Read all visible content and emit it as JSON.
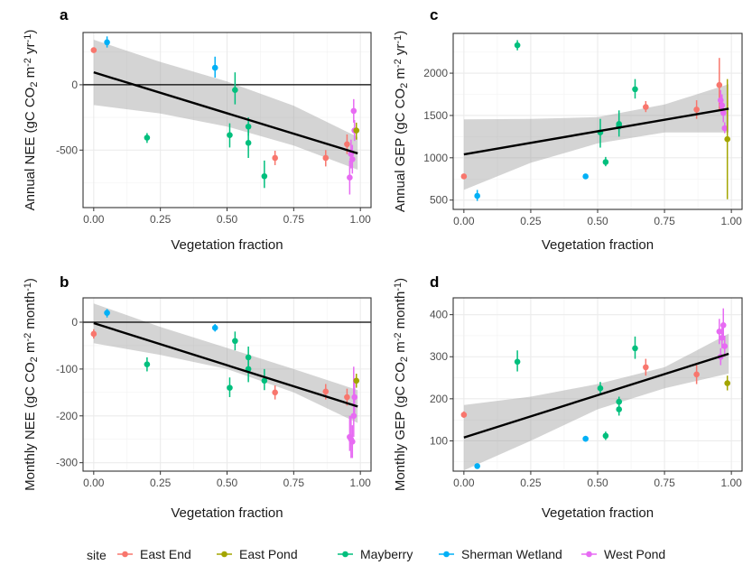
{
  "legend": {
    "title": "site",
    "items": [
      {
        "key": "east_end",
        "label": "East End",
        "color": "#F8766D"
      },
      {
        "key": "east_pond",
        "label": "East Pond",
        "color": "#A3A500"
      },
      {
        "key": "mayberry",
        "label": "Mayberry",
        "color": "#00BF7D"
      },
      {
        "key": "sherman",
        "label": "Sherman Wetland",
        "color": "#00B0F6"
      },
      {
        "key": "west_pond",
        "label": "West Pond",
        "color": "#E76BF3"
      }
    ]
  },
  "chart_data": [
    {
      "panel": "a",
      "type": "scatter",
      "xlabel": "Vegetation fraction",
      "ylabel_parts": [
        "Annual NEE (gC CO",
        "2",
        " m",
        "-2",
        " yr",
        "-1",
        ")"
      ],
      "xlim": [
        -0.04,
        1.04
      ],
      "ylim": [
        -940,
        400
      ],
      "xticks": [
        0,
        0.25,
        0.5,
        0.75,
        1
      ],
      "xtick_labels": [
        "0.00",
        "0.25",
        "0.50",
        "0.75",
        "1.00"
      ],
      "yticks": [
        -500,
        0
      ],
      "ytick_labels": [
        "-500",
        "0"
      ],
      "hline": 0,
      "fit": {
        "x0": 0,
        "y0": 95,
        "x1": 0.99,
        "y1": -525
      },
      "band": {
        "x": [
          0,
          0.25,
          0.5,
          0.75,
          0.99
        ],
        "lo": [
          -155,
          -220,
          -320,
          -465,
          -650
        ],
        "hi": [
          345,
          175,
          25,
          -160,
          -400
        ]
      },
      "points": [
        {
          "site": "east_end",
          "x": 0.0,
          "y": 265,
          "lo": 265,
          "hi": 265
        },
        {
          "site": "sherman",
          "x": 0.05,
          "y": 325,
          "lo": 285,
          "hi": 370
        },
        {
          "site": "mayberry",
          "x": 0.2,
          "y": -405,
          "lo": -445,
          "hi": -370
        },
        {
          "site": "sherman",
          "x": 0.455,
          "y": 130,
          "lo": 55,
          "hi": 215
        },
        {
          "site": "mayberry",
          "x": 0.51,
          "y": -385,
          "lo": -480,
          "hi": -295
        },
        {
          "site": "mayberry",
          "x": 0.53,
          "y": -40,
          "lo": -150,
          "hi": 95
        },
        {
          "site": "mayberry",
          "x": 0.58,
          "y": -320,
          "lo": -390,
          "hi": -250
        },
        {
          "site": "mayberry",
          "x": 0.58,
          "y": -445,
          "lo": -560,
          "hi": -330
        },
        {
          "site": "mayberry",
          "x": 0.64,
          "y": -700,
          "lo": -790,
          "hi": -580
        },
        {
          "site": "east_end",
          "x": 0.68,
          "y": -560,
          "lo": -615,
          "hi": -505
        },
        {
          "site": "east_end",
          "x": 0.87,
          "y": -560,
          "lo": -625,
          "hi": -500
        },
        {
          "site": "east_end",
          "x": 0.95,
          "y": -455,
          "lo": -530,
          "hi": -380
        },
        {
          "site": "west_pond",
          "x": 0.96,
          "y": -710,
          "lo": -840,
          "hi": -580
        },
        {
          "site": "west_pond",
          "x": 0.965,
          "y": -530,
          "lo": -640,
          "hi": -420
        },
        {
          "site": "west_pond",
          "x": 0.97,
          "y": -570,
          "lo": -680,
          "hi": -460
        },
        {
          "site": "west_pond",
          "x": 0.975,
          "y": -200,
          "lo": -290,
          "hi": -110
        },
        {
          "site": "west_pond",
          "x": 0.978,
          "y": -350,
          "lo": -430,
          "hi": -270
        },
        {
          "site": "east_pond",
          "x": 0.985,
          "y": -350,
          "lo": -420,
          "hi": -290
        }
      ]
    },
    {
      "panel": "b",
      "type": "scatter",
      "xlabel": "Vegetation fraction",
      "ylabel_parts": [
        "Monthly NEE (gC CO",
        "2",
        " m",
        "-2",
        " month",
        "-1",
        ")"
      ],
      "xlim": [
        -0.04,
        1.04
      ],
      "ylim": [
        -318,
        52
      ],
      "xticks": [
        0,
        0.25,
        0.5,
        0.75,
        1
      ],
      "xtick_labels": [
        "0.00",
        "0.25",
        "0.50",
        "0.75",
        "1.00"
      ],
      "yticks": [
        -300,
        -200,
        -100,
        0
      ],
      "ytick_labels": [
        "-300",
        "-200",
        "-100",
        "0"
      ],
      "hline": 0,
      "fit": {
        "x0": 0,
        "y0": -2,
        "x1": 0.99,
        "y1": -180
      },
      "band": {
        "x": [
          0,
          0.25,
          0.5,
          0.75,
          0.99
        ],
        "lo": [
          -45,
          -70,
          -100,
          -150,
          -215
        ],
        "hi": [
          40,
          -10,
          -55,
          -100,
          -145
        ]
      },
      "points": [
        {
          "site": "east_end",
          "x": 0.0,
          "y": -25,
          "lo": -35,
          "hi": -15
        },
        {
          "site": "sherman",
          "x": 0.05,
          "y": 20,
          "lo": 10,
          "hi": 28
        },
        {
          "site": "mayberry",
          "x": 0.2,
          "y": -90,
          "lo": -105,
          "hi": -75
        },
        {
          "site": "sherman",
          "x": 0.455,
          "y": -12,
          "lo": -20,
          "hi": -4
        },
        {
          "site": "mayberry",
          "x": 0.51,
          "y": -140,
          "lo": -160,
          "hi": -118
        },
        {
          "site": "mayberry",
          "x": 0.53,
          "y": -40,
          "lo": -60,
          "hi": -20
        },
        {
          "site": "mayberry",
          "x": 0.58,
          "y": -75,
          "lo": -100,
          "hi": -52
        },
        {
          "site": "mayberry",
          "x": 0.58,
          "y": -100,
          "lo": -128,
          "hi": -78
        },
        {
          "site": "mayberry",
          "x": 0.64,
          "y": -125,
          "lo": -145,
          "hi": -100
        },
        {
          "site": "east_end",
          "x": 0.68,
          "y": -150,
          "lo": -165,
          "hi": -135
        },
        {
          "site": "east_end",
          "x": 0.87,
          "y": -148,
          "lo": -165,
          "hi": -132
        },
        {
          "site": "east_end",
          "x": 0.95,
          "y": -160,
          "lo": -178,
          "hi": -142
        },
        {
          "site": "west_pond",
          "x": 0.96,
          "y": -245,
          "lo": -275,
          "hi": -200
        },
        {
          "site": "west_pond",
          "x": 0.965,
          "y": -250,
          "lo": -290,
          "hi": -200
        },
        {
          "site": "west_pond",
          "x": 0.97,
          "y": -255,
          "lo": -290,
          "hi": -220
        },
        {
          "site": "west_pond",
          "x": 0.975,
          "y": -200,
          "lo": -245,
          "hi": -95
        },
        {
          "site": "west_pond",
          "x": 0.978,
          "y": -160,
          "lo": -200,
          "hi": -120
        },
        {
          "site": "east_pond",
          "x": 0.985,
          "y": -125,
          "lo": -140,
          "hi": -110
        }
      ]
    },
    {
      "panel": "c",
      "type": "scatter",
      "xlabel": "Vegetation fraction",
      "ylabel_parts": [
        "Annual GEP (gC CO",
        "2",
        " m",
        "-2",
        " yr",
        "-1",
        ")"
      ],
      "xlim": [
        -0.04,
        1.04
      ],
      "ylim": [
        390,
        2470
      ],
      "xticks": [
        0,
        0.25,
        0.5,
        0.75,
        1
      ],
      "xtick_labels": [
        "0.00",
        "0.25",
        "0.50",
        "0.75",
        "1.00"
      ],
      "yticks": [
        500,
        1000,
        1500,
        2000
      ],
      "ytick_labels": [
        "500",
        "1000",
        "1500",
        "2000"
      ],
      "hline": null,
      "fit": {
        "x0": 0,
        "y0": 1040,
        "x1": 0.99,
        "y1": 1580
      },
      "band": {
        "x": [
          0,
          0.25,
          0.5,
          0.75,
          0.99
        ],
        "lo": [
          620,
          940,
          1170,
          1300,
          1300
        ],
        "hi": [
          1455,
          1460,
          1480,
          1630,
          1870
        ]
      },
      "points": [
        {
          "site": "east_end",
          "x": 0.0,
          "y": 780,
          "lo": 780,
          "hi": 780
        },
        {
          "site": "sherman",
          "x": 0.05,
          "y": 550,
          "lo": 490,
          "hi": 620
        },
        {
          "site": "mayberry",
          "x": 0.2,
          "y": 2330,
          "lo": 2270,
          "hi": 2390
        },
        {
          "site": "sherman",
          "x": 0.455,
          "y": 780,
          "lo": 780,
          "hi": 780
        },
        {
          "site": "mayberry",
          "x": 0.51,
          "y": 1300,
          "lo": 1120,
          "hi": 1460
        },
        {
          "site": "mayberry",
          "x": 0.53,
          "y": 950,
          "lo": 900,
          "hi": 1010
        },
        {
          "site": "mayberry",
          "x": 0.58,
          "y": 1370,
          "lo": 1250,
          "hi": 1490
        },
        {
          "site": "mayberry",
          "x": 0.58,
          "y": 1400,
          "lo": 1300,
          "hi": 1560
        },
        {
          "site": "mayberry",
          "x": 0.64,
          "y": 1810,
          "lo": 1700,
          "hi": 1930
        },
        {
          "site": "east_end",
          "x": 0.68,
          "y": 1600,
          "lo": 1540,
          "hi": 1670
        },
        {
          "site": "east_end",
          "x": 0.87,
          "y": 1570,
          "lo": 1460,
          "hi": 1680
        },
        {
          "site": "east_end",
          "x": 0.955,
          "y": 1860,
          "lo": 1560,
          "hi": 2180
        },
        {
          "site": "west_pond",
          "x": 0.96,
          "y": 1680,
          "lo": 1560,
          "hi": 1800
        },
        {
          "site": "west_pond",
          "x": 0.965,
          "y": 1620,
          "lo": 1500,
          "hi": 1750
        },
        {
          "site": "west_pond",
          "x": 0.97,
          "y": 1530,
          "lo": 1420,
          "hi": 1650
        },
        {
          "site": "west_pond",
          "x": 0.975,
          "y": 1350,
          "lo": 1290,
          "hi": 1420
        },
        {
          "site": "east_pond",
          "x": 0.985,
          "y": 1220,
          "lo": 510,
          "hi": 1930
        }
      ]
    },
    {
      "panel": "d",
      "type": "scatter",
      "xlabel": "Vegetation fraction",
      "ylabel_parts": [
        "Monthly GEP (gC CO",
        "2",
        " m",
        "-2",
        " month",
        "-1",
        ")"
      ],
      "xlim": [
        -0.04,
        1.04
      ],
      "ylim": [
        28,
        440
      ],
      "xticks": [
        0,
        0.25,
        0.5,
        0.75,
        1
      ],
      "xtick_labels": [
        "0.00",
        "0.25",
        "0.50",
        "0.75",
        "1.00"
      ],
      "yticks": [
        100,
        200,
        300,
        400
      ],
      "ytick_labels": [
        "100",
        "200",
        "300",
        "400"
      ],
      "hline": null,
      "fit": {
        "x0": 0,
        "y0": 108,
        "x1": 0.99,
        "y1": 307
      },
      "band": {
        "x": [
          0,
          0.25,
          0.5,
          0.75,
          0.99
        ],
        "lo": [
          30,
          100,
          175,
          225,
          260
        ],
        "hi": [
          185,
          205,
          235,
          275,
          355
        ]
      },
      "points": [
        {
          "site": "east_end",
          "x": 0.0,
          "y": 162,
          "lo": 155,
          "hi": 170
        },
        {
          "site": "sherman",
          "x": 0.05,
          "y": 40,
          "lo": 35,
          "hi": 45
        },
        {
          "site": "mayberry",
          "x": 0.2,
          "y": 288,
          "lo": 265,
          "hi": 315
        },
        {
          "site": "sherman",
          "x": 0.455,
          "y": 105,
          "lo": 98,
          "hi": 112
        },
        {
          "site": "mayberry",
          "x": 0.51,
          "y": 225,
          "lo": 210,
          "hi": 240
        },
        {
          "site": "mayberry",
          "x": 0.53,
          "y": 112,
          "lo": 102,
          "hi": 122
        },
        {
          "site": "mayberry",
          "x": 0.58,
          "y": 193,
          "lo": 180,
          "hi": 205
        },
        {
          "site": "mayberry",
          "x": 0.58,
          "y": 175,
          "lo": 160,
          "hi": 190
        },
        {
          "site": "mayberry",
          "x": 0.64,
          "y": 320,
          "lo": 295,
          "hi": 348
        },
        {
          "site": "east_end",
          "x": 0.68,
          "y": 275,
          "lo": 255,
          "hi": 295
        },
        {
          "site": "east_end",
          "x": 0.87,
          "y": 258,
          "lo": 235,
          "hi": 280
        },
        {
          "site": "west_pond",
          "x": 0.955,
          "y": 360,
          "lo": 330,
          "hi": 390
        },
        {
          "site": "west_pond",
          "x": 0.96,
          "y": 300,
          "lo": 280,
          "hi": 320
        },
        {
          "site": "west_pond",
          "x": 0.965,
          "y": 345,
          "lo": 320,
          "hi": 370
        },
        {
          "site": "west_pond",
          "x": 0.97,
          "y": 375,
          "lo": 345,
          "hi": 415
        },
        {
          "site": "west_pond",
          "x": 0.975,
          "y": 325,
          "lo": 300,
          "hi": 350
        },
        {
          "site": "east_pond",
          "x": 0.985,
          "y": 237,
          "lo": 220,
          "hi": 255
        }
      ]
    }
  ]
}
